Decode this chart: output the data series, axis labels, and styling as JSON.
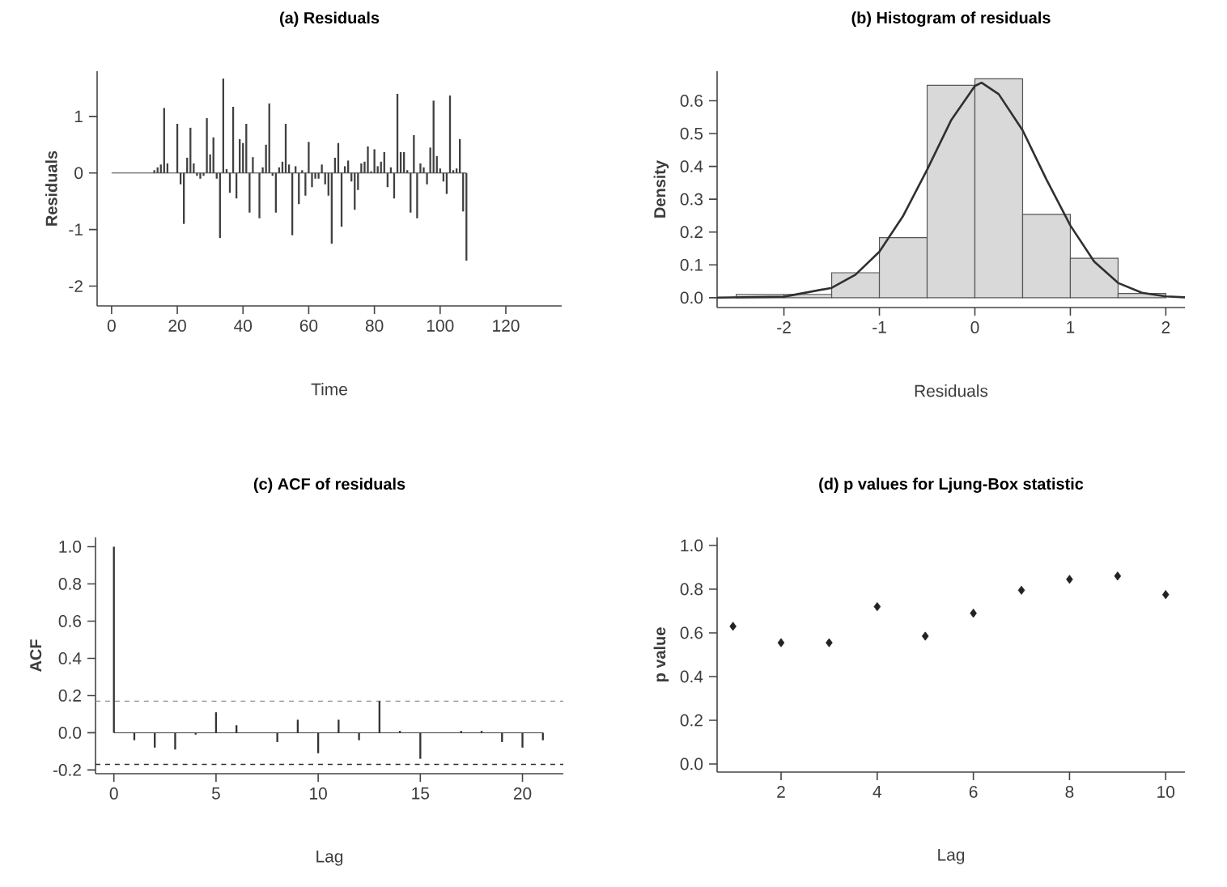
{
  "chart_data": [
    {
      "type": "bar",
      "title": "(a) Residuals",
      "xlabel": "Time",
      "ylabel": "Residuals",
      "color": "#404040",
      "x": [
        0,
        13,
        14,
        15,
        16,
        17,
        20,
        21,
        22,
        23,
        24,
        25,
        26,
        27,
        28,
        29,
        30,
        31,
        32,
        33,
        34,
        35,
        36,
        37,
        38,
        39,
        40,
        41,
        42,
        43,
        45,
        46,
        47,
        48,
        49,
        50,
        51,
        52,
        53,
        54,
        55,
        56,
        57,
        58,
        59,
        60,
        61,
        62,
        63,
        64,
        65,
        66,
        67,
        68,
        69,
        70,
        71,
        72,
        73,
        74,
        75,
        76,
        77,
        78,
        79,
        80,
        81,
        82,
        83,
        84,
        85,
        86,
        87,
        88,
        89,
        90,
        91,
        92,
        93,
        94,
        95,
        96,
        97,
        98,
        99,
        100,
        101,
        102,
        103,
        104,
        105,
        106,
        107,
        108
      ],
      "values": [
        0,
        0.05,
        0.1,
        0.15,
        1.15,
        0.17,
        0.87,
        -0.2,
        -0.9,
        0.27,
        0.8,
        0.17,
        -0.05,
        -0.1,
        -0.05,
        0.97,
        0.33,
        0.63,
        -0.1,
        -1.15,
        1.67,
        0.07,
        -0.35,
        1.17,
        -0.45,
        0.6,
        0.53,
        0.87,
        -0.7,
        0.28,
        -0.8,
        0.1,
        0.5,
        1.23,
        -0.05,
        -0.7,
        0.1,
        0.2,
        0.87,
        0.15,
        -1.1,
        0.12,
        -0.55,
        0.05,
        -0.4,
        0.55,
        -0.25,
        -0.1,
        -0.1,
        0.15,
        -0.2,
        -0.4,
        -1.25,
        0.27,
        0.53,
        -0.95,
        0.12,
        0.22,
        -0.15,
        -0.65,
        -0.3,
        0.17,
        0.2,
        0.47,
        0.03,
        0.42,
        0.12,
        0.2,
        0.37,
        -0.25,
        0.1,
        -0.45,
        1.4,
        0.37,
        0.37,
        0.05,
        -0.7,
        0.67,
        -0.8,
        0.17,
        0.1,
        -0.2,
        0.45,
        1.28,
        0.3,
        0.08,
        -0.15,
        -0.37,
        1.37,
        0.05,
        0.08,
        0.6,
        -0.68,
        -1.55
      ],
      "xlim": [
        -4.4,
        137
      ],
      "ylim": [
        -2.35,
        1.8
      ],
      "xticks": [
        0,
        20,
        40,
        60,
        80,
        100,
        120
      ],
      "yticks": [
        -2,
        -1,
        0,
        1
      ]
    },
    {
      "type": "histogram",
      "title": "(b) Histogram of residuals",
      "xlabel": "Residuals",
      "ylabel": "Density",
      "series": [
        {
          "type": "histogram",
          "color": "#d9d9d9",
          "bins": [
            -2.5,
            -2,
            -1.5,
            -1,
            -0.5,
            0,
            0.5,
            1,
            1.5,
            2
          ],
          "values": [
            0.01,
            0.01,
            0.076,
            0.183,
            0.647,
            0.667,
            0.254,
            0.12,
            0.013
          ]
        },
        {
          "type": "line",
          "color": "#303030",
          "x": [
            -2.7,
            -2.0,
            -1.5,
            -1.25,
            -1.0,
            -0.75,
            -0.5,
            -0.25,
            0.0,
            0.07,
            0.25,
            0.5,
            0.75,
            1.0,
            1.25,
            1.5,
            1.75,
            2.0,
            2.2
          ],
          "values": [
            0.0,
            0.003,
            0.03,
            0.07,
            0.14,
            0.25,
            0.39,
            0.54,
            0.645,
            0.655,
            0.62,
            0.51,
            0.36,
            0.22,
            0.11,
            0.045,
            0.015,
            0.004,
            0.001
          ]
        }
      ],
      "xlim": [
        -2.7,
        2.2
      ],
      "ylim": [
        -0.03,
        0.69
      ],
      "xticks": [
        -2,
        -1,
        0,
        1,
        2
      ],
      "yticks": [
        {
          "value": 0,
          "label": "0.0"
        },
        {
          "value": 0.1,
          "label": "0.1"
        },
        {
          "value": 0.2,
          "label": "0.2"
        },
        {
          "value": 0.3,
          "label": "0.3"
        },
        {
          "value": 0.4,
          "label": "0.4"
        },
        {
          "value": 0.5,
          "label": "0.5"
        },
        {
          "value": 0.6,
          "label": "0.6"
        }
      ]
    },
    {
      "type": "bar",
      "title": "(c) ACF of residuals",
      "xlabel": "Lag",
      "ylabel": "ACF",
      "color": "#333333",
      "x": [
        0,
        1,
        2,
        3,
        4,
        5,
        6,
        7,
        8,
        9,
        10,
        11,
        12,
        13,
        14,
        15,
        16,
        17,
        18,
        19,
        20,
        21
      ],
      "values": [
        1.0,
        -0.04,
        -0.08,
        -0.09,
        -0.01,
        0.11,
        0.04,
        0.0,
        -0.05,
        0.07,
        -0.11,
        0.07,
        -0.04,
        0.17,
        0.01,
        -0.14,
        0.0,
        0.01,
        0.01,
        -0.05,
        -0.08,
        -0.04
      ],
      "ref_lines": [
        {
          "axis": "y",
          "value": 0.17,
          "color": "#909090",
          "line_style": "dashed"
        },
        {
          "axis": "y",
          "value": -0.17,
          "color": "#303030",
          "line_style": "dashed"
        }
      ],
      "xlim": [
        -0.9,
        22
      ],
      "ylim": [
        -0.22,
        1.05
      ],
      "xticks": [
        0,
        5,
        10,
        15,
        20
      ],
      "yticks": [
        {
          "value": -0.2,
          "label": "-0.2"
        },
        {
          "value": 0,
          "label": "0.0"
        },
        {
          "value": 0.2,
          "label": "0.2"
        },
        {
          "value": 0.4,
          "label": "0.4"
        },
        {
          "value": 0.6,
          "label": "0.6"
        },
        {
          "value": 0.8,
          "label": "0.8"
        },
        {
          "value": 1.0,
          "label": "1.0"
        }
      ]
    },
    {
      "type": "scatter",
      "title": "(d) p values for Ljung-Box statistic",
      "xlabel": "Lag",
      "ylabel": "p value",
      "color": "#222222",
      "marker": "diamond",
      "x": [
        1,
        2,
        3,
        4,
        5,
        6,
        7,
        8,
        9,
        10
      ],
      "values": [
        0.63,
        0.555,
        0.555,
        0.72,
        0.585,
        0.69,
        0.795,
        0.845,
        0.86,
        0.775
      ],
      "xlim": [
        0.67,
        10.4
      ],
      "ylim": [
        -0.037,
        1.037
      ],
      "xticks": [
        2,
        4,
        6,
        8,
        10
      ],
      "yticks": [
        {
          "value": 0,
          "label": "0.0"
        },
        {
          "value": 0.2,
          "label": "0.2"
        },
        {
          "value": 0.4,
          "label": "0.4"
        },
        {
          "value": 0.6,
          "label": "0.6"
        },
        {
          "value": 0.8,
          "label": "0.8"
        },
        {
          "value": 1.0,
          "label": "1.0"
        }
      ]
    }
  ]
}
